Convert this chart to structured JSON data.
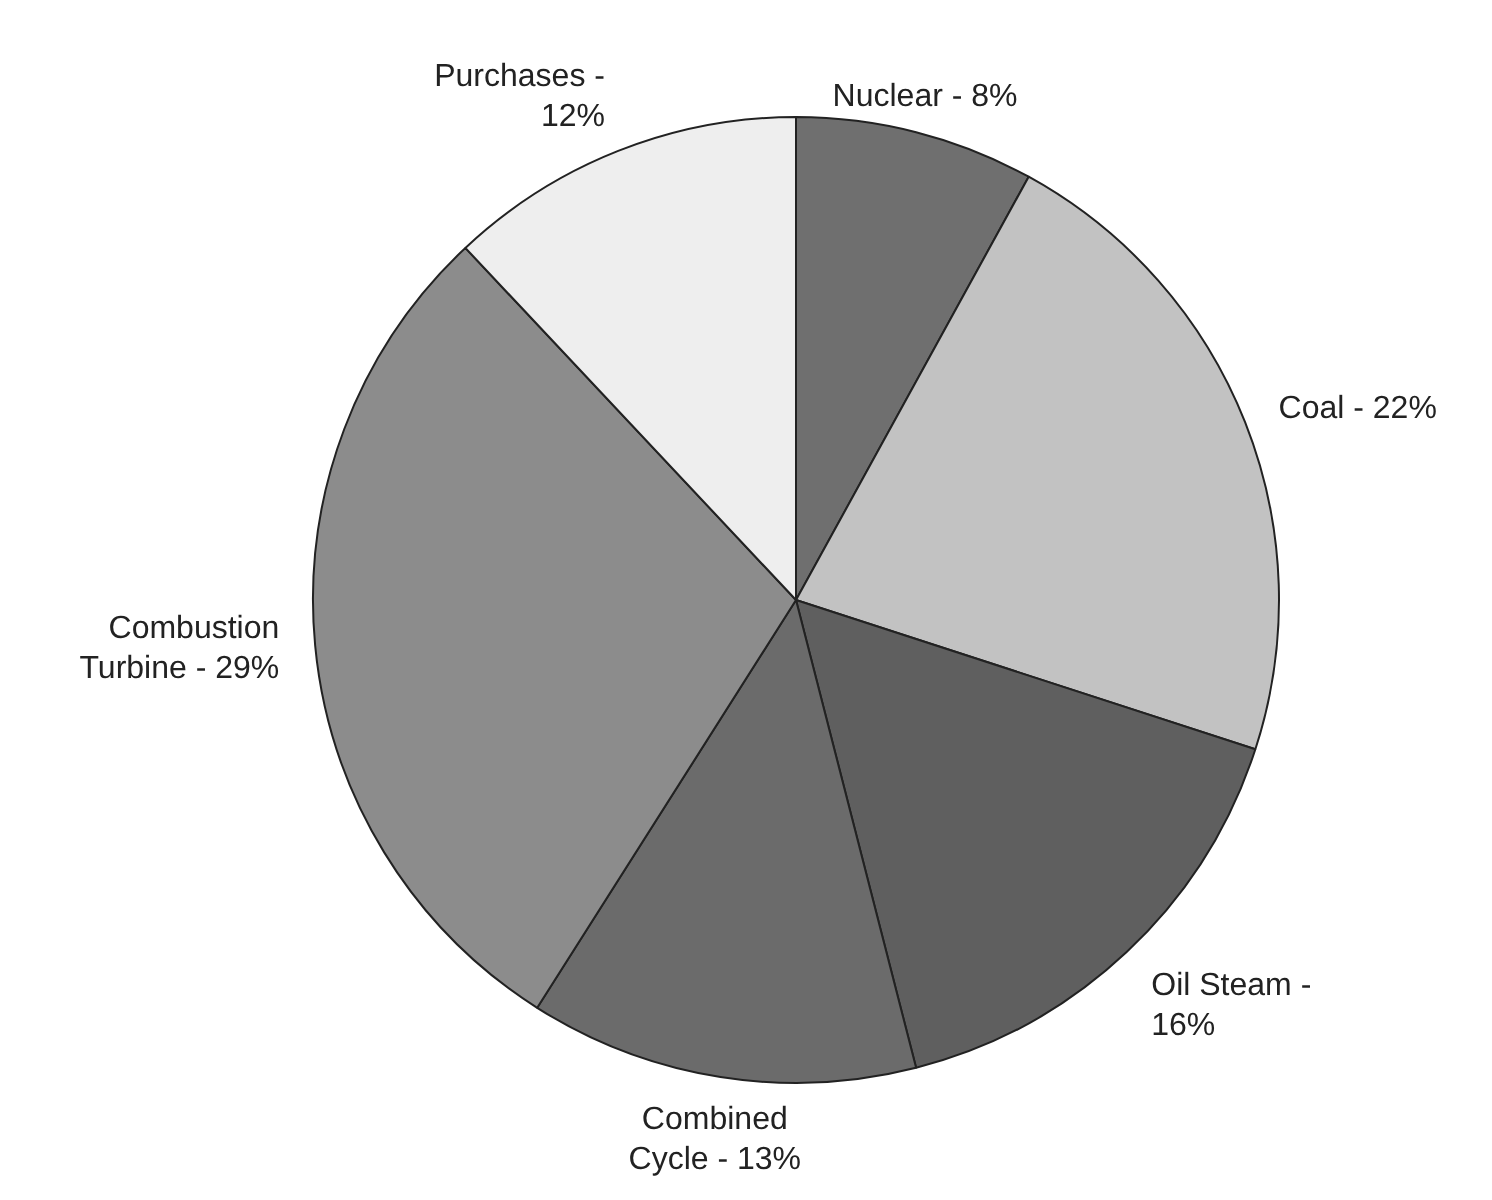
{
  "chart_data": {
    "type": "pie",
    "categories": [
      "Nuclear - 8%",
      "Coal - 22%",
      "Oil Steam - 16%",
      "Combined Cycle - 13%",
      "Combustion Turbine - 29%",
      "Purchases - 12%"
    ],
    "values": [
      8,
      22,
      16,
      13,
      29,
      12
    ],
    "colors": [
      "#6f6f6f",
      "#c2c2c2",
      "#5f5f5f",
      "#6b6b6b",
      "#8c8c8c",
      "#eeeeee"
    ],
    "legend": false
  }
}
